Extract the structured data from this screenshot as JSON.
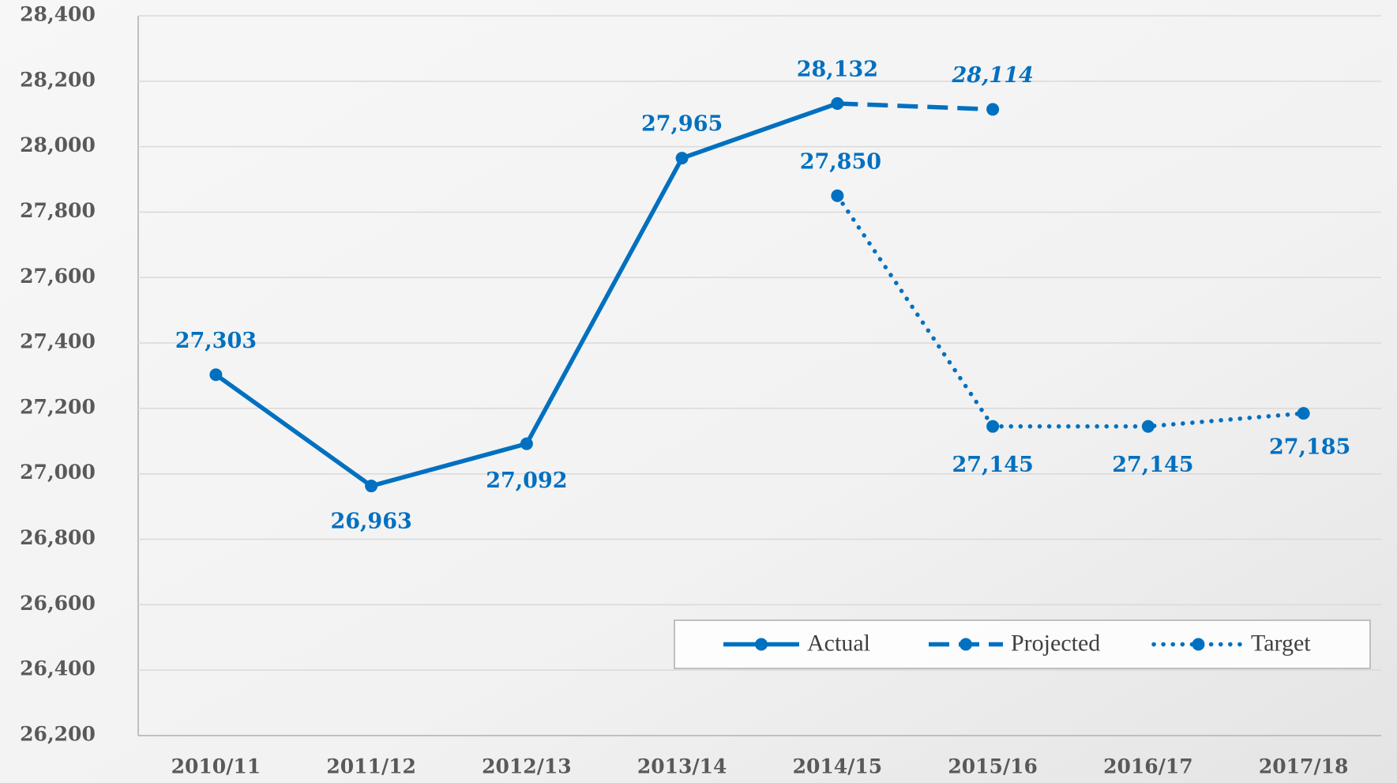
{
  "chart_data": {
    "type": "line",
    "categories": [
      "2010/11",
      "2011/12",
      "2012/13",
      "2013/14",
      "2014/15",
      "2015/16",
      "2016/17",
      "2017/18"
    ],
    "series": [
      {
        "name": "Actual",
        "color": "#0070c0",
        "style": "solid",
        "values": [
          27303,
          26963,
          27092,
          27965,
          28132,
          null,
          null,
          null
        ],
        "value_labels": [
          "27,303",
          "26,963",
          "27,092",
          "27,965",
          "28,132",
          null,
          null,
          null
        ]
      },
      {
        "name": "Projected",
        "color": "#0070c0",
        "style": "dashed",
        "values": [
          null,
          null,
          null,
          null,
          28132,
          28114,
          null,
          null
        ],
        "value_labels": [
          null,
          null,
          null,
          null,
          null,
          "28,114",
          null,
          null
        ]
      },
      {
        "name": "Target",
        "color": "#0070c0",
        "style": "dotted",
        "values": [
          null,
          null,
          null,
          null,
          27850,
          27145,
          27145,
          27185
        ],
        "value_labels": [
          null,
          null,
          null,
          null,
          "27,850",
          "27,145",
          "27,145",
          "27,185"
        ]
      }
    ],
    "ylim": [
      26200,
      28400
    ],
    "yticks": [
      {
        "value": 26200,
        "label": "26,200"
      },
      {
        "value": 26400,
        "label": "26,400"
      },
      {
        "value": 26600,
        "label": "26,600"
      },
      {
        "value": 26800,
        "label": "26,800"
      },
      {
        "value": 27000,
        "label": "27,000"
      },
      {
        "value": 27200,
        "label": "27,200"
      },
      {
        "value": 27400,
        "label": "27,400"
      },
      {
        "value": 27600,
        "label": "27,600"
      },
      {
        "value": 27800,
        "label": "27,800"
      },
      {
        "value": 28000,
        "label": "28,000"
      },
      {
        "value": 28200,
        "label": "28,200"
      },
      {
        "value": 28400,
        "label": "28,400"
      }
    ],
    "grid": true,
    "legend": "lower right"
  }
}
